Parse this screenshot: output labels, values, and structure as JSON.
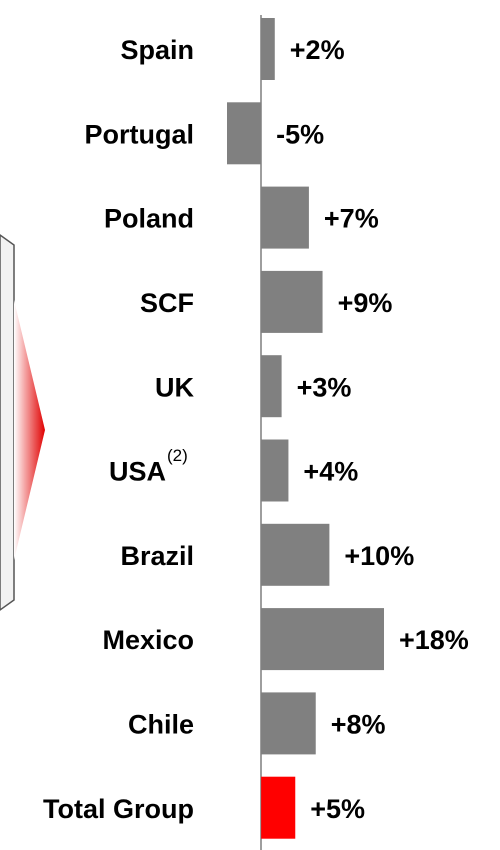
{
  "chart_data": {
    "type": "hbar",
    "categories": [
      "Spain",
      "Portugal",
      "Poland",
      "SCF",
      "UK",
      "USA",
      "Brazil",
      "Mexico",
      "Chile",
      "Total Group"
    ],
    "values": [
      2,
      -5,
      7,
      9,
      3,
      4,
      10,
      18,
      8,
      5
    ],
    "value_labels": [
      "+2%",
      "-5%",
      "+7%",
      "+9%",
      "+3%",
      "+4%",
      "+10%",
      "+18%",
      "+8%",
      "+5%"
    ],
    "colors": [
      "#808080",
      "#808080",
      "#808080",
      "#808080",
      "#808080",
      "#808080",
      "#808080",
      "#808080",
      "#808080",
      "#ff0000"
    ],
    "annotations": [
      "(2)"
    ],
    "xlim": [
      -5,
      18
    ]
  }
}
